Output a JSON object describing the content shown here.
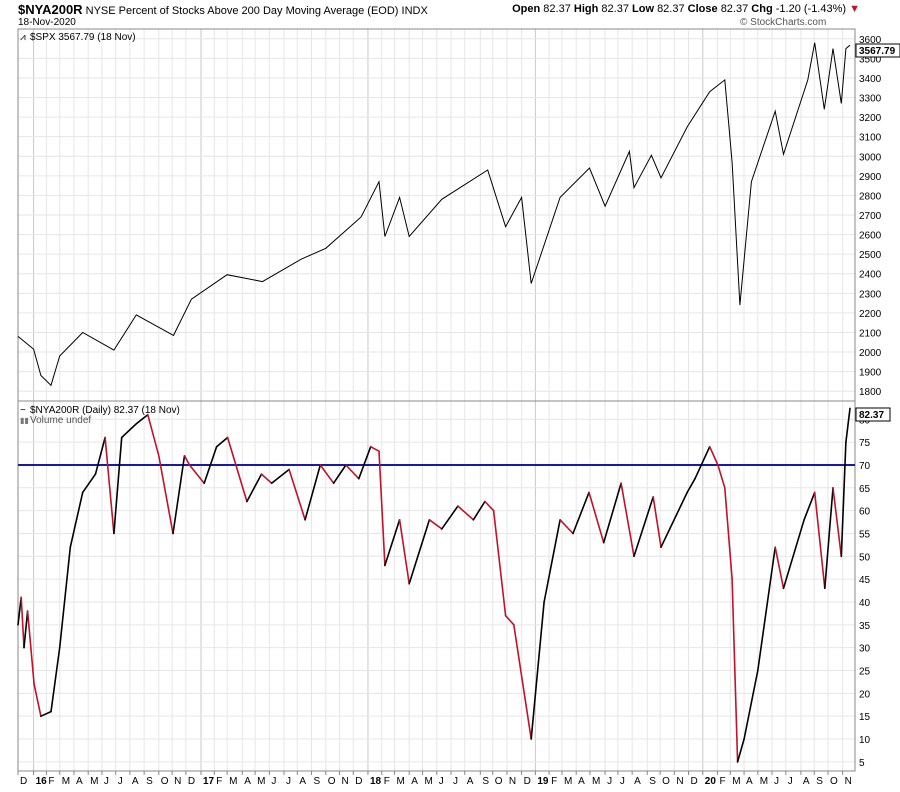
{
  "header": {
    "symbol": "$NYA200R",
    "description": "NYSE Percent of Stocks Above 200 Day Moving Average (EOD)",
    "exchange": "INDX",
    "date": "18-Nov-2020",
    "open_label": "Open",
    "open": "82.37",
    "high_label": "High",
    "high": "82.37",
    "low_label": "Low",
    "low": "82.37",
    "close_label": "Close",
    "close": "82.37",
    "chg_label": "Chg",
    "chg": "-1.20 (-1.43%)",
    "brand": "© StockCharts.com"
  },
  "upper_panel": {
    "legend": "$SPX 3567.79 (18 Nov)",
    "last_value": "3567.79"
  },
  "lower_panel": {
    "legend": "$NYA200R (Daily) 82.37 (18 Nov)",
    "volume_label": "Volume undef",
    "last_value": "82.37",
    "reference_line": 70
  },
  "colors": {
    "spx_line": "#000000",
    "up_line": "#000000",
    "down_line": "#c0122b",
    "reference_line": "#1a1aa0",
    "grid": "#e6e6e6"
  },
  "chart_data": [
    {
      "type": "line",
      "name": "$SPX",
      "ylim": [
        1750,
        3650
      ],
      "yticks": [
        1800,
        1900,
        2000,
        2100,
        2200,
        2300,
        2400,
        2500,
        2600,
        2700,
        2800,
        2900,
        3000,
        3100,
        3200,
        3300,
        3400,
        3500,
        3600
      ],
      "x": [
        "2015-12-01",
        "2016-01-04",
        "2016-01-20",
        "2016-02-11",
        "2016-03-01",
        "2016-04-20",
        "2016-06-27",
        "2016-08-15",
        "2016-11-04",
        "2016-12-13",
        "2017-03-01",
        "2017-05-17",
        "2017-08-10",
        "2017-10-02",
        "2017-12-18",
        "2018-01-26",
        "2018-02-08",
        "2018-03-12",
        "2018-04-02",
        "2018-06-12",
        "2018-09-20",
        "2018-10-29",
        "2018-12-03",
        "2018-12-24",
        "2019-02-25",
        "2019-04-30",
        "2019-06-03",
        "2019-07-26",
        "2019-08-05",
        "2019-09-12",
        "2019-10-03",
        "2019-11-29",
        "2020-01-17",
        "2020-02-19",
        "2020-03-06",
        "2020-03-23",
        "2020-04-17",
        "2020-06-08",
        "2020-06-26",
        "2020-08-18",
        "2020-09-02",
        "2020-09-23",
        "2020-10-12",
        "2020-10-30",
        "2020-11-09",
        "2020-11-18"
      ],
      "y": [
        2080,
        2015,
        1880,
        1830,
        1980,
        2100,
        2010,
        2190,
        2085,
        2270,
        2395,
        2360,
        2475,
        2530,
        2690,
        2870,
        2590,
        2790,
        2590,
        2780,
        2930,
        2640,
        2790,
        2350,
        2790,
        2940,
        2745,
        3025,
        2840,
        3005,
        2890,
        3150,
        3330,
        3390,
        2970,
        2240,
        2870,
        3230,
        3010,
        3390,
        3580,
        3240,
        3550,
        3270,
        3550,
        3567.79
      ]
    },
    {
      "type": "line",
      "name": "$NYA200R",
      "ylim": [
        3,
        84
      ],
      "yticks": [
        5,
        10,
        15,
        20,
        25,
        30,
        35,
        40,
        45,
        50,
        55,
        60,
        65,
        70,
        75,
        80
      ],
      "x": [
        "2015-12-01",
        "2015-12-08",
        "2015-12-14",
        "2015-12-22",
        "2016-01-05",
        "2016-01-20",
        "2016-02-11",
        "2016-03-01",
        "2016-03-24",
        "2016-04-20",
        "2016-05-18",
        "2016-06-08",
        "2016-06-27",
        "2016-07-14",
        "2016-08-15",
        "2016-09-09",
        "2016-10-03",
        "2016-11-03",
        "2016-11-28",
        "2016-12-09",
        "2017-01-10",
        "2017-02-06",
        "2017-03-02",
        "2017-04-13",
        "2017-05-15",
        "2017-06-06",
        "2017-07-14",
        "2017-08-18",
        "2017-09-20",
        "2017-10-19",
        "2017-11-15",
        "2017-12-13",
        "2018-01-08",
        "2018-01-26",
        "2018-02-08",
        "2018-03-12",
        "2018-04-02",
        "2018-05-16",
        "2018-06-12",
        "2018-07-17",
        "2018-08-20",
        "2018-09-14",
        "2018-10-03",
        "2018-10-29",
        "2018-11-16",
        "2018-12-24",
        "2019-01-21",
        "2019-02-25",
        "2019-03-25",
        "2019-04-29",
        "2019-05-31",
        "2019-07-08",
        "2019-08-05",
        "2019-09-16",
        "2019-10-03",
        "2019-11-29",
        "2019-12-16",
        "2020-01-17",
        "2020-02-04",
        "2020-02-19",
        "2020-03-06",
        "2020-03-18",
        "2020-04-01",
        "2020-05-01",
        "2020-06-08",
        "2020-06-26",
        "2020-08-10",
        "2020-09-02",
        "2020-09-24",
        "2020-10-12",
        "2020-10-30",
        "2020-11-09",
        "2020-11-18"
      ],
      "y": [
        35,
        41,
        30,
        38,
        22,
        15,
        16,
        30,
        52,
        64,
        68,
        76,
        55,
        76,
        79,
        81,
        72,
        55,
        72,
        70,
        66,
        74,
        76,
        62,
        68,
        66,
        69,
        58,
        70,
        66,
        70,
        67,
        74,
        73,
        48,
        58,
        44,
        58,
        56,
        61,
        58,
        62,
        60,
        37,
        35,
        10,
        40,
        58,
        55,
        64,
        53,
        66,
        50,
        63,
        52,
        64,
        67,
        74,
        70,
        65,
        45,
        5,
        10,
        25,
        52,
        43,
        58,
        64,
        43,
        65,
        50,
        75,
        82.37
      ]
    }
  ],
  "x_axis": {
    "ticks": [
      {
        "d": "2015-12-01",
        "label": "D",
        "year": false
      },
      {
        "d": "2016-01-04",
        "label": "16",
        "year": true
      },
      {
        "d": "2016-02-01",
        "label": "F",
        "year": false
      },
      {
        "d": "2016-03-01",
        "label": "M",
        "year": false
      },
      {
        "d": "2016-04-01",
        "label": "A",
        "year": false
      },
      {
        "d": "2016-05-02",
        "label": "M",
        "year": false
      },
      {
        "d": "2016-06-01",
        "label": "J",
        "year": false
      },
      {
        "d": "2016-07-01",
        "label": "J",
        "year": false
      },
      {
        "d": "2016-08-01",
        "label": "A",
        "year": false
      },
      {
        "d": "2016-09-01",
        "label": "S",
        "year": false
      },
      {
        "d": "2016-10-03",
        "label": "O",
        "year": false
      },
      {
        "d": "2016-11-01",
        "label": "N",
        "year": false
      },
      {
        "d": "2016-12-01",
        "label": "D",
        "year": false
      },
      {
        "d": "2017-01-03",
        "label": "17",
        "year": true
      },
      {
        "d": "2017-02-01",
        "label": "F",
        "year": false
      },
      {
        "d": "2017-03-01",
        "label": "M",
        "year": false
      },
      {
        "d": "2017-04-03",
        "label": "A",
        "year": false
      },
      {
        "d": "2017-05-01",
        "label": "M",
        "year": false
      },
      {
        "d": "2017-06-01",
        "label": "J",
        "year": false
      },
      {
        "d": "2017-07-03",
        "label": "J",
        "year": false
      },
      {
        "d": "2017-08-01",
        "label": "A",
        "year": false
      },
      {
        "d": "2017-09-01",
        "label": "S",
        "year": false
      },
      {
        "d": "2017-10-02",
        "label": "O",
        "year": false
      },
      {
        "d": "2017-11-01",
        "label": "N",
        "year": false
      },
      {
        "d": "2017-12-01",
        "label": "D",
        "year": false
      },
      {
        "d": "2018-01-02",
        "label": "18",
        "year": true
      },
      {
        "d": "2018-02-01",
        "label": "F",
        "year": false
      },
      {
        "d": "2018-03-01",
        "label": "M",
        "year": false
      },
      {
        "d": "2018-04-02",
        "label": "A",
        "year": false
      },
      {
        "d": "2018-05-01",
        "label": "M",
        "year": false
      },
      {
        "d": "2018-06-01",
        "label": "J",
        "year": false
      },
      {
        "d": "2018-07-02",
        "label": "J",
        "year": false
      },
      {
        "d": "2018-08-01",
        "label": "A",
        "year": false
      },
      {
        "d": "2018-09-04",
        "label": "S",
        "year": false
      },
      {
        "d": "2018-10-01",
        "label": "O",
        "year": false
      },
      {
        "d": "2018-11-01",
        "label": "N",
        "year": false
      },
      {
        "d": "2018-12-03",
        "label": "D",
        "year": false
      },
      {
        "d": "2019-01-02",
        "label": "19",
        "year": true
      },
      {
        "d": "2019-02-01",
        "label": "F",
        "year": false
      },
      {
        "d": "2019-03-01",
        "label": "M",
        "year": false
      },
      {
        "d": "2019-04-01",
        "label": "A",
        "year": false
      },
      {
        "d": "2019-05-01",
        "label": "M",
        "year": false
      },
      {
        "d": "2019-06-03",
        "label": "J",
        "year": false
      },
      {
        "d": "2019-07-01",
        "label": "J",
        "year": false
      },
      {
        "d": "2019-08-01",
        "label": "A",
        "year": false
      },
      {
        "d": "2019-09-03",
        "label": "S",
        "year": false
      },
      {
        "d": "2019-10-01",
        "label": "O",
        "year": false
      },
      {
        "d": "2019-11-01",
        "label": "N",
        "year": false
      },
      {
        "d": "2019-12-02",
        "label": "D",
        "year": false
      },
      {
        "d": "2020-01-02",
        "label": "20",
        "year": true
      },
      {
        "d": "2020-02-03",
        "label": "F",
        "year": false
      },
      {
        "d": "2020-03-02",
        "label": "M",
        "year": false
      },
      {
        "d": "2020-04-01",
        "label": "A",
        "year": false
      },
      {
        "d": "2020-05-01",
        "label": "M",
        "year": false
      },
      {
        "d": "2020-06-01",
        "label": "J",
        "year": false
      },
      {
        "d": "2020-07-01",
        "label": "J",
        "year": false
      },
      {
        "d": "2020-08-03",
        "label": "A",
        "year": false
      },
      {
        "d": "2020-09-01",
        "label": "S",
        "year": false
      },
      {
        "d": "2020-10-01",
        "label": "O",
        "year": false
      },
      {
        "d": "2020-11-02",
        "label": "N",
        "year": false
      }
    ]
  }
}
